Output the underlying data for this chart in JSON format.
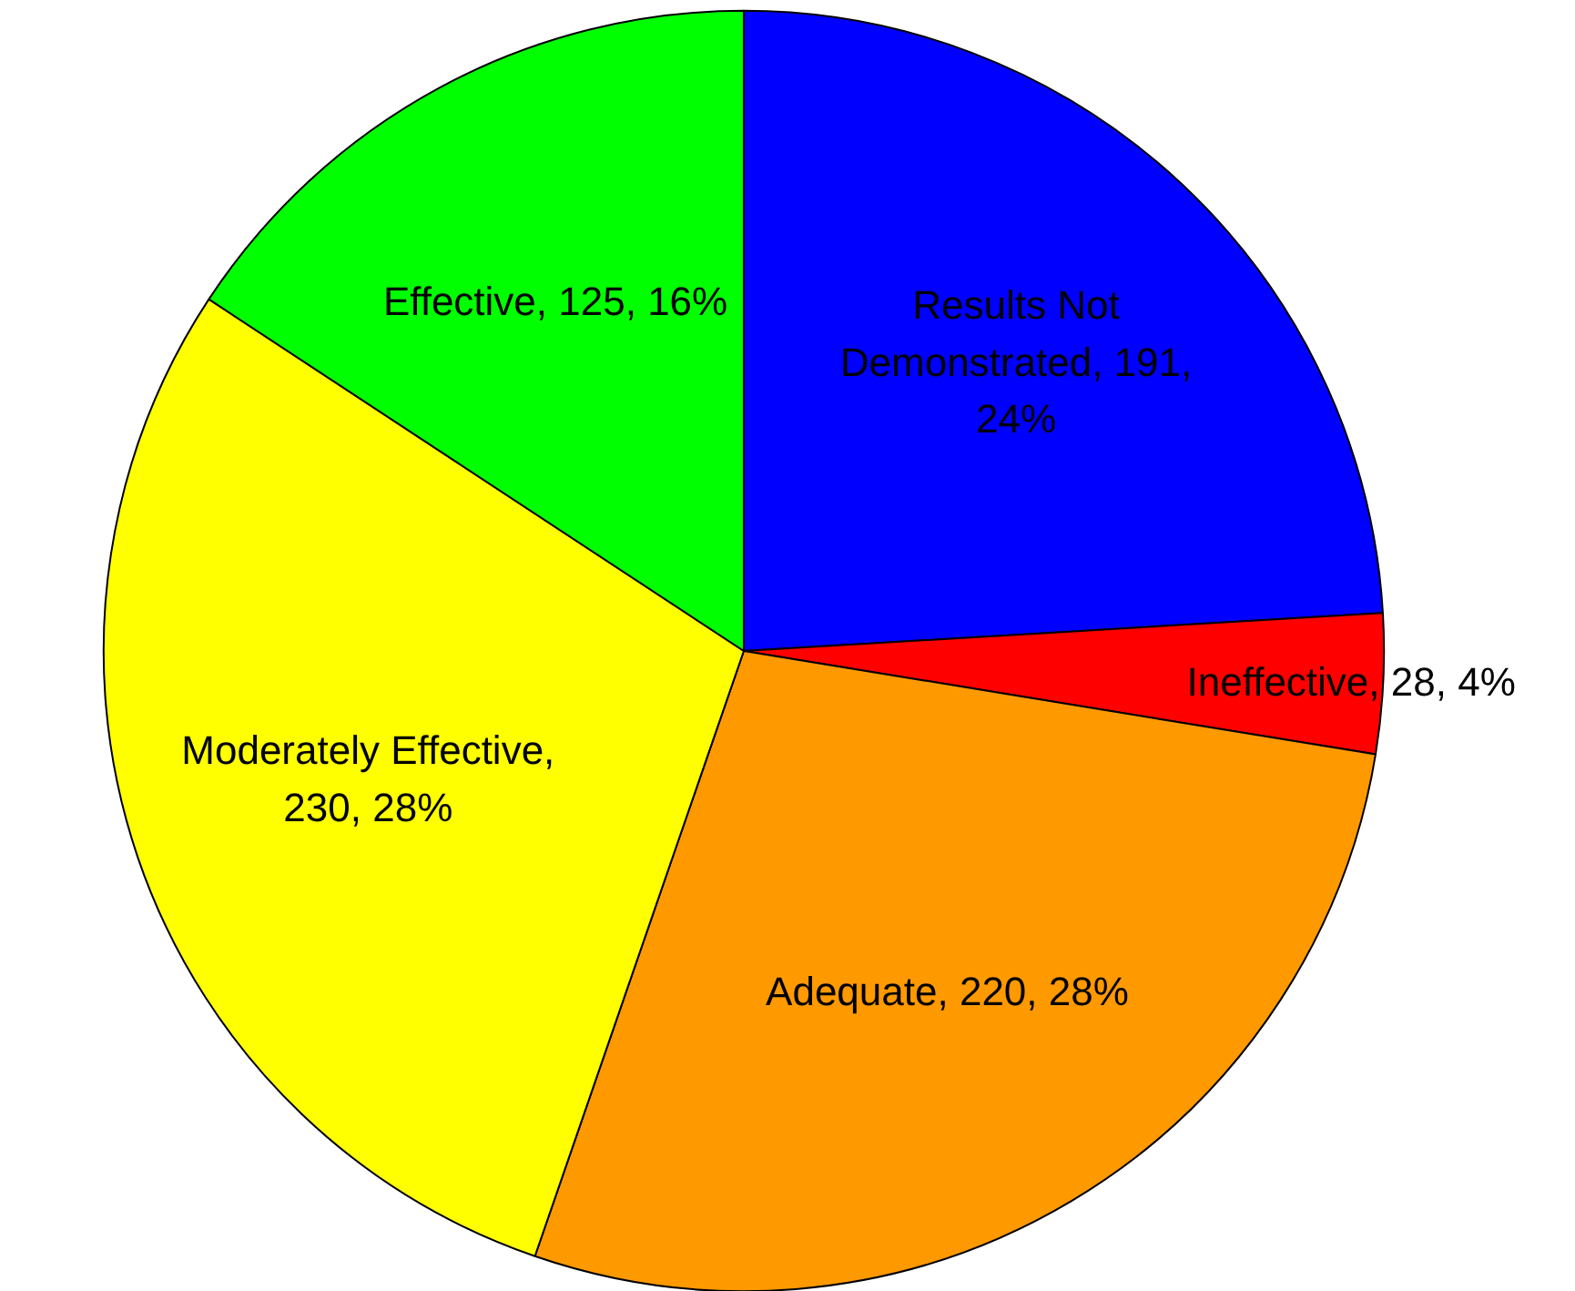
{
  "chart_data": {
    "type": "pie",
    "categories": [
      "Results Not Demonstrated, 191, 24%",
      "Ineffective, 28, 4%",
      "Adequate, 220, 28%",
      "Moderately Effective, 230, 28%",
      "Effective, 125, 16%"
    ],
    "values": [
      191,
      28,
      220,
      230,
      125
    ],
    "colors": [
      "#0000ff",
      "#ff0000",
      "#ff9900",
      "#ffff00",
      "#00ff00"
    ]
  }
}
